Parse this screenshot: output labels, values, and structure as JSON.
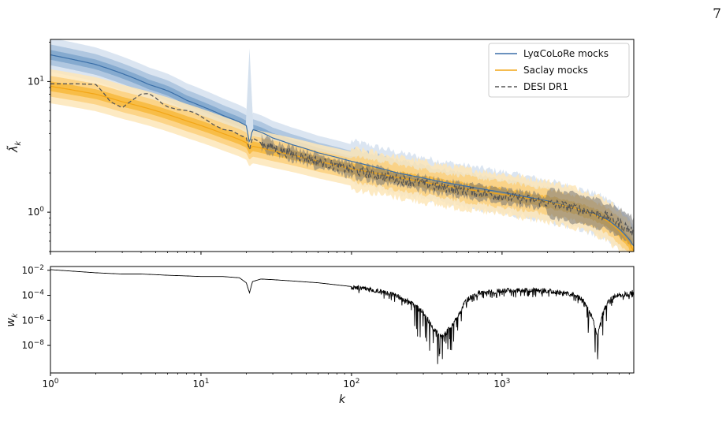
{
  "page": {
    "number": "7"
  },
  "chart_data": [
    {
      "type": "line",
      "ylabel": "λ̃_k",
      "x_scale": "log",
      "y_scale": "log",
      "xlim": [
        1,
        7500
      ],
      "ylim": [
        0.5,
        21
      ],
      "y_ticks": [
        {
          "value": 1,
          "base": "10",
          "exp": "0"
        },
        {
          "value": 10,
          "base": "10",
          "exp": "1"
        }
      ],
      "legend": {
        "placement": "top-right",
        "entries": [
          {
            "label": "LyαCoLoRe mocks",
            "style": "solid",
            "color": "#3a6fa8"
          },
          {
            "label": "Saclay mocks",
            "style": "solid",
            "color": "#f2a516"
          },
          {
            "label": "DESI DR1",
            "style": "dashed",
            "color": "#555555"
          }
        ]
      },
      "series": [
        {
          "name": "LyαCoLoRe mocks",
          "color": "#3a6fa8",
          "band_colors": [
            "#d5e1ee",
            "#a8c2dd",
            "#7ea4cb"
          ],
          "x": [
            1,
            2,
            3,
            4.5,
            6,
            8,
            10,
            14,
            18,
            20,
            21,
            22,
            25,
            30,
            40,
            60,
            100,
            200,
            400,
            700,
            1000,
            1500,
            2000,
            3000,
            4000,
            5000,
            6000,
            7000,
            7500
          ],
          "values": [
            16,
            13.5,
            11.5,
            9.5,
            8.5,
            7.2,
            6.5,
            5.5,
            4.9,
            4.6,
            3.3,
            4.3,
            4.1,
            3.7,
            3.3,
            2.85,
            2.45,
            2.0,
            1.7,
            1.52,
            1.42,
            1.3,
            1.22,
            1.08,
            0.98,
            0.88,
            0.75,
            0.62,
            0.55
          ],
          "spike": {
            "x": 21,
            "value": 18
          }
        },
        {
          "name": "Saclay mocks",
          "color": "#f2a516",
          "band_colors": [
            "#fde6b8",
            "#fbd07e",
            "#f7b83c"
          ],
          "x": [
            1,
            2,
            3,
            4.5,
            6,
            8,
            10,
            14,
            18,
            20,
            21,
            22,
            25,
            30,
            40,
            60,
            100,
            200,
            400,
            700,
            1000,
            1500,
            2000,
            3000,
            4000,
            5000,
            6000,
            7000,
            7500
          ],
          "values": [
            9.2,
            8.0,
            7.0,
            6.2,
            5.6,
            5.0,
            4.6,
            4.0,
            3.6,
            3.4,
            3.0,
            3.2,
            3.1,
            2.95,
            2.75,
            2.45,
            2.15,
            1.85,
            1.6,
            1.45,
            1.37,
            1.27,
            1.2,
            1.08,
            0.97,
            0.86,
            0.72,
            0.58,
            0.5
          ]
        },
        {
          "name": "DESI DR1",
          "color": "#555555",
          "x": [
            1,
            1.5,
            2,
            2.5,
            3,
            3.5,
            4,
            4.5,
            5,
            5.5,
            6,
            7,
            8,
            9,
            10,
            12,
            14,
            16,
            18,
            20,
            21,
            22,
            25,
            30,
            40,
            60,
            100,
            200,
            400,
            700,
            1000,
            1500,
            2000,
            3000,
            4000,
            5000,
            6000,
            7000,
            7500
          ],
          "values": [
            9.6,
            9.6,
            9.5,
            7.0,
            6.3,
            7.2,
            8.0,
            8.1,
            7.5,
            6.8,
            6.4,
            6.1,
            6.0,
            5.8,
            5.4,
            4.7,
            4.3,
            4.2,
            3.9,
            3.7,
            3.0,
            3.7,
            3.4,
            3.1,
            2.8,
            2.45,
            2.1,
            1.8,
            1.55,
            1.42,
            1.33,
            1.25,
            1.18,
            1.08,
            1.0,
            0.92,
            0.83,
            0.74,
            0.7
          ],
          "noise_from_x": 25
        }
      ]
    },
    {
      "type": "line",
      "xlabel": "k",
      "ylabel": "w_k",
      "x_scale": "log",
      "y_scale": "log",
      "xlim": [
        1,
        7500
      ],
      "ylim_exp": [
        -10.2,
        -1.7
      ],
      "x_ticks": [
        {
          "value": 1,
          "base": "10",
          "exp": "0"
        },
        {
          "value": 10,
          "base": "10",
          "exp": "1"
        },
        {
          "value": 100,
          "base": "10",
          "exp": "2"
        },
        {
          "value": 1000,
          "base": "10",
          "exp": "3"
        }
      ],
      "y_ticks": [
        {
          "value_exp": -2,
          "base": "10",
          "exp": "−2"
        },
        {
          "value_exp": -4,
          "base": "10",
          "exp": "−4"
        },
        {
          "value_exp": -6,
          "base": "10",
          "exp": "−6"
        },
        {
          "value_exp": -8,
          "base": "10",
          "exp": "−8"
        }
      ],
      "series": [
        {
          "color": "#000000",
          "x": [
            1,
            2,
            3,
            4,
            5,
            6,
            8,
            10,
            14,
            18,
            20,
            21,
            22,
            25,
            30,
            40,
            60,
            100,
            150,
            200,
            250,
            300,
            350,
            400,
            450,
            500,
            550,
            600,
            700,
            1000,
            1500,
            2000,
            3000,
            3500,
            4000,
            4300,
            4600,
            5000,
            5500,
            6000,
            7000,
            7500
          ],
          "values_log10": [
            -1.95,
            -2.2,
            -2.3,
            -2.3,
            -2.35,
            -2.4,
            -2.45,
            -2.5,
            -2.5,
            -2.6,
            -3.0,
            -3.8,
            -2.9,
            -2.7,
            -2.75,
            -2.85,
            -3.0,
            -3.3,
            -3.6,
            -4.0,
            -4.6,
            -5.3,
            -6.6,
            -7.3,
            -6.6,
            -5.8,
            -4.8,
            -4.2,
            -3.8,
            -3.6,
            -3.55,
            -3.6,
            -3.9,
            -4.4,
            -5.8,
            -7.3,
            -5.6,
            -4.6,
            -4.1,
            -3.95,
            -3.8,
            -3.7
          ],
          "noise_from_x": 100
        }
      ]
    }
  ]
}
